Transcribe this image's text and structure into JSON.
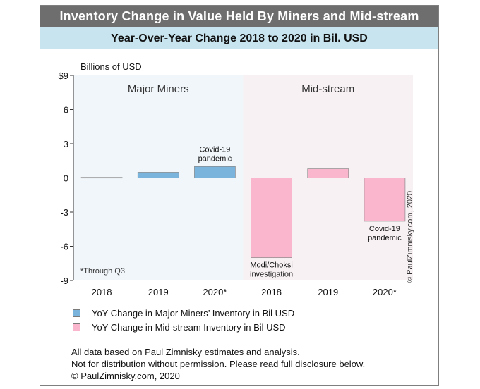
{
  "header": {
    "title": "Inventory Change in Value Held By Miners and Mid-stream",
    "subtitle": "Year-Over-Year Change 2018 to 2020 in Bil. USD"
  },
  "colors": {
    "header_bg": "#6e6e6e",
    "subheader_bg": "#c8e4ee",
    "miners_bar": "#7ab4dc",
    "midstream_bar": "#f9b6cc",
    "miners_panel": "#f1f6fa",
    "midstream_panel": "#f8f1f4"
  },
  "chart_data": {
    "type": "bar",
    "ylabel": "Billions of USD",
    "ylim": [
      -9,
      9
    ],
    "yticks": [
      {
        "value": 9,
        "label": "$9"
      },
      {
        "value": 6,
        "label": "6"
      },
      {
        "value": 3,
        "label": "3"
      },
      {
        "value": 0,
        "label": "0"
      },
      {
        "value": -3,
        "label": "-3"
      },
      {
        "value": -6,
        "label": "-6"
      },
      {
        "value": -9,
        "label": "-9"
      }
    ],
    "panels": [
      "Major Miners",
      "Mid-stream"
    ],
    "categories": [
      "2018",
      "2019",
      "2020*",
      "2018",
      "2019",
      "2020*"
    ],
    "series": [
      {
        "name": "YoY Change in Major Miners’ Inventory in Bil USD",
        "values": [
          0.05,
          0.5,
          1.0,
          null,
          null,
          null
        ]
      },
      {
        "name": "YoY Change in Mid-stream Inventory in Bil USD",
        "values": [
          null,
          null,
          null,
          -7.0,
          0.8,
          -3.8
        ]
      }
    ],
    "annotations": [
      {
        "category_index": 2,
        "lines": [
          "Covid-19",
          "pandemic"
        ]
      },
      {
        "category_index": 3,
        "lines": [
          "Modi/Choksi",
          "investigation"
        ]
      },
      {
        "category_index": 5,
        "lines": [
          "Covid-19",
          "pandemic"
        ]
      }
    ],
    "footnote": "*Through Q3",
    "grid": false,
    "legend_position": "bottom-left"
  },
  "notes": [
    "All data based on Paul Zimnisky estimates and analysis.",
    "Not for distribution without permission. Please read full disclosure below.",
    "© PaulZimnisky.com, 2020"
  ],
  "watermark": "© PaulZimnisky.com, 2020"
}
